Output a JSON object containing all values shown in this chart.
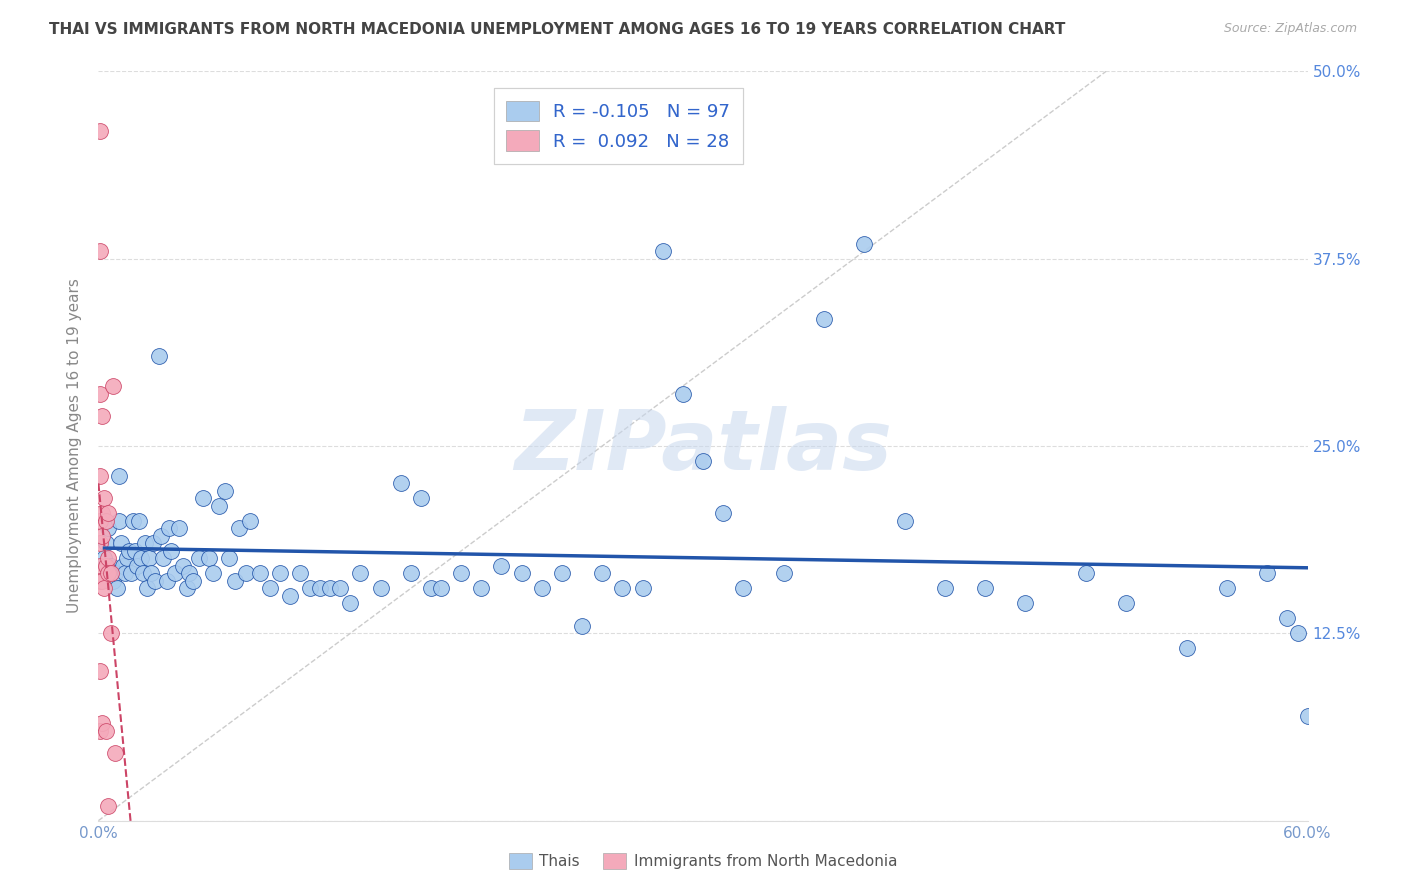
{
  "title": "THAI VS IMMIGRANTS FROM NORTH MACEDONIA UNEMPLOYMENT AMONG AGES 16 TO 19 YEARS CORRELATION CHART",
  "source": "Source: ZipAtlas.com",
  "ylabel": "Unemployment Among Ages 16 to 19 years",
  "xlim": [
    0.0,
    0.6
  ],
  "ylim": [
    0.0,
    0.5
  ],
  "xticks": [
    0.0,
    0.1,
    0.2,
    0.3,
    0.4,
    0.5,
    0.6
  ],
  "xticklabels": [
    "0.0%",
    "",
    "",
    "",
    "",
    "",
    "60.0%"
  ],
  "yticks": [
    0.0,
    0.125,
    0.25,
    0.375,
    0.5
  ],
  "yticklabels": [
    "",
    "12.5%",
    "25.0%",
    "37.5%",
    "50.0%"
  ],
  "watermark": "ZIPatlas",
  "color_thai": "#aaccee",
  "color_macedonian": "#f4aabb",
  "color_trend_thai": "#2255aa",
  "color_trend_macedonian": "#cc4466",
  "thai_x": [
    0.003,
    0.004,
    0.005,
    0.006,
    0.007,
    0.008,
    0.009,
    0.01,
    0.01,
    0.011,
    0.012,
    0.013,
    0.014,
    0.015,
    0.016,
    0.017,
    0.018,
    0.019,
    0.02,
    0.021,
    0.022,
    0.023,
    0.024,
    0.025,
    0.026,
    0.027,
    0.028,
    0.03,
    0.031,
    0.032,
    0.034,
    0.035,
    0.036,
    0.038,
    0.04,
    0.042,
    0.044,
    0.045,
    0.047,
    0.05,
    0.052,
    0.055,
    0.057,
    0.06,
    0.063,
    0.065,
    0.068,
    0.07,
    0.073,
    0.075,
    0.08,
    0.085,
    0.09,
    0.095,
    0.1,
    0.105,
    0.11,
    0.115,
    0.12,
    0.125,
    0.13,
    0.14,
    0.15,
    0.155,
    0.16,
    0.165,
    0.17,
    0.18,
    0.19,
    0.2,
    0.21,
    0.22,
    0.23,
    0.24,
    0.25,
    0.26,
    0.27,
    0.28,
    0.29,
    0.3,
    0.31,
    0.32,
    0.34,
    0.36,
    0.38,
    0.4,
    0.42,
    0.44,
    0.46,
    0.49,
    0.51,
    0.54,
    0.56,
    0.58,
    0.59,
    0.595,
    0.6
  ],
  "thai_y": [
    0.175,
    0.185,
    0.195,
    0.17,
    0.16,
    0.165,
    0.155,
    0.23,
    0.2,
    0.185,
    0.17,
    0.165,
    0.175,
    0.18,
    0.165,
    0.2,
    0.18,
    0.17,
    0.2,
    0.175,
    0.165,
    0.185,
    0.155,
    0.175,
    0.165,
    0.185,
    0.16,
    0.31,
    0.19,
    0.175,
    0.16,
    0.195,
    0.18,
    0.165,
    0.195,
    0.17,
    0.155,
    0.165,
    0.16,
    0.175,
    0.215,
    0.175,
    0.165,
    0.21,
    0.22,
    0.175,
    0.16,
    0.195,
    0.165,
    0.2,
    0.165,
    0.155,
    0.165,
    0.15,
    0.165,
    0.155,
    0.155,
    0.155,
    0.155,
    0.145,
    0.165,
    0.155,
    0.225,
    0.165,
    0.215,
    0.155,
    0.155,
    0.165,
    0.155,
    0.17,
    0.165,
    0.155,
    0.165,
    0.13,
    0.165,
    0.155,
    0.155,
    0.38,
    0.285,
    0.24,
    0.205,
    0.155,
    0.165,
    0.335,
    0.385,
    0.2,
    0.155,
    0.155,
    0.145,
    0.165,
    0.145,
    0.115,
    0.155,
    0.165,
    0.135,
    0.125,
    0.07
  ],
  "mac_x": [
    0.001,
    0.001,
    0.001,
    0.001,
    0.001,
    0.001,
    0.001,
    0.001,
    0.001,
    0.001,
    0.002,
    0.002,
    0.002,
    0.002,
    0.002,
    0.003,
    0.003,
    0.004,
    0.004,
    0.004,
    0.005,
    0.005,
    0.005,
    0.005,
    0.006,
    0.006,
    0.007,
    0.008
  ],
  "mac_y": [
    0.46,
    0.38,
    0.285,
    0.23,
    0.2,
    0.185,
    0.17,
    0.16,
    0.1,
    0.06,
    0.27,
    0.205,
    0.19,
    0.16,
    0.065,
    0.215,
    0.155,
    0.2,
    0.17,
    0.06,
    0.205,
    0.175,
    0.165,
    0.01,
    0.165,
    0.125,
    0.29,
    0.045
  ]
}
